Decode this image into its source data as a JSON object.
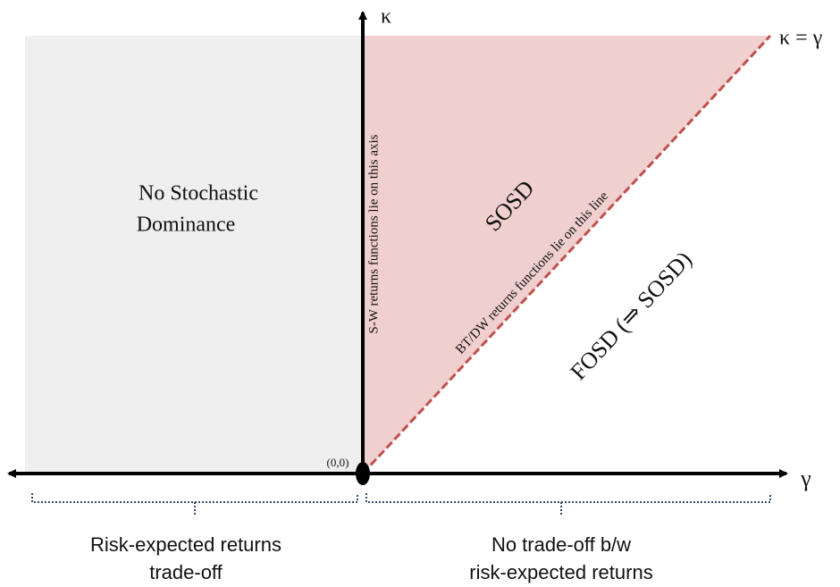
{
  "axes": {
    "y_label": "κ",
    "x_label": "γ",
    "origin": "(0,0)",
    "diagonal_label": "κ = γ"
  },
  "regions": {
    "left": [
      "No Stochastic",
      "Dominance"
    ],
    "triangle": "SOSD",
    "lower_right": "FOSD (⇒ SOSD)"
  },
  "annotations": {
    "vertical_axis": "S-W returns functions lie on this axis",
    "diagonal": "BT/DW  returns functions lie on this line"
  },
  "brackets": {
    "left": [
      "Risk-expected returns",
      "trade-off"
    ],
    "right": [
      "No trade-off b/w",
      "risk-expected returns"
    ]
  }
}
